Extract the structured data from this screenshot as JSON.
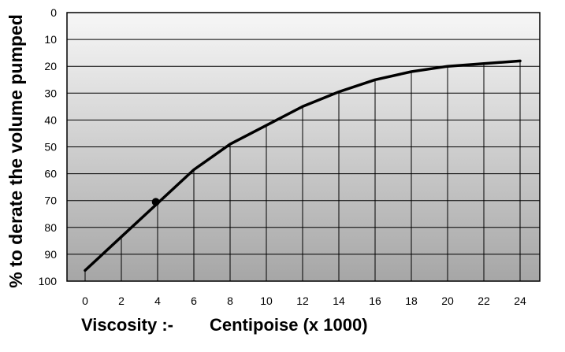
{
  "chart_data": {
    "type": "line",
    "title": "",
    "ylabel": "% to derate the volume pumped",
    "xlabel_prefix": "Viscosity :-",
    "xlabel": "Centipoise (x 1000)",
    "x_ticks": [
      "0",
      "2",
      "4",
      "6",
      "8",
      "10",
      "12",
      "14",
      "16",
      "18",
      "20",
      "22",
      "24"
    ],
    "y_ticks": [
      "0",
      "10",
      "20",
      "30",
      "40",
      "50",
      "60",
      "70",
      "80",
      "90",
      "100"
    ],
    "xlim": [
      0,
      24
    ],
    "ylim": [
      0,
      100
    ],
    "y_inverted": true,
    "grid": true,
    "legend": "none",
    "series": [
      {
        "x": [
          0,
          2,
          4,
          6,
          8,
          10,
          12,
          14,
          16,
          18,
          20,
          22,
          24
        ],
        "y": [
          96,
          83.5,
          71,
          58.5,
          49,
          42,
          35,
          29.5,
          25,
          22,
          20,
          19,
          18
        ]
      }
    ],
    "marker": {
      "x": 3.9,
      "y": 70.5
    },
    "colors": {
      "line": "#000000",
      "grid": "#000000",
      "background_top": "#f7f7f7",
      "background_bottom": "#a6a6a6"
    }
  }
}
